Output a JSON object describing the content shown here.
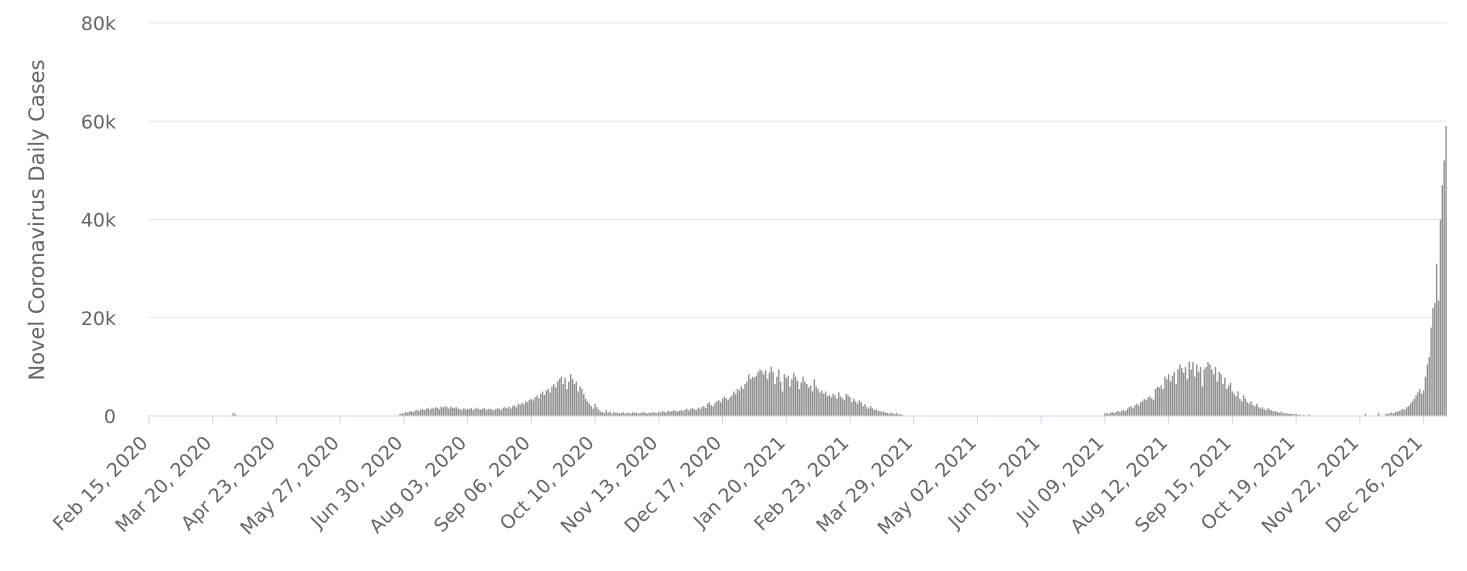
{
  "chart_data": {
    "type": "bar",
    "y_label": "Novel Coronavirus Daily Cases",
    "color": "#8f8f8f",
    "grid": true,
    "ylim": [
      0,
      80000
    ],
    "yticks": [
      0,
      {
        "value": 20000,
        "label": "20k"
      },
      {
        "value": 40000,
        "label": "40k"
      },
      {
        "value": 60000,
        "label": "60k"
      },
      {
        "value": 80000,
        "label": "80k"
      }
    ],
    "categories": [
      "Feb 15, 2020",
      null,
      null,
      null,
      null,
      null,
      null,
      null,
      null,
      null,
      null,
      null,
      null,
      null,
      null,
      null,
      null,
      null,
      null,
      null,
      null,
      null,
      null,
      null,
      null,
      null,
      null,
      null,
      null,
      null,
      null,
      null,
      null,
      null,
      "Mar 20, 2020",
      null,
      null,
      null,
      null,
      null,
      null,
      null,
      null,
      null,
      null,
      null,
      null,
      null,
      null,
      null,
      null,
      null,
      null,
      null,
      null,
      null,
      null,
      null,
      null,
      null,
      null,
      null,
      null,
      null,
      null,
      null,
      null,
      null,
      "Apr 23, 2020",
      null,
      null,
      null,
      null,
      null,
      null,
      null,
      null,
      null,
      null,
      null,
      null,
      null,
      null,
      null,
      null,
      null,
      null,
      null,
      null,
      null,
      null,
      null,
      null,
      null,
      null,
      null,
      null,
      null,
      null,
      null,
      null,
      null,
      "May 27, 2020",
      null,
      null,
      null,
      null,
      null,
      null,
      null,
      null,
      null,
      null,
      null,
      null,
      null,
      null,
      null,
      null,
      null,
      null,
      null,
      null,
      null,
      null,
      null,
      null,
      null,
      null,
      null,
      null,
      null,
      null,
      null,
      null,
      null,
      "Jun 30, 2020",
      null,
      null,
      null,
      null,
      null,
      null,
      null,
      null,
      null,
      null,
      null,
      null,
      null,
      null,
      null,
      null,
      null,
      null,
      null,
      null,
      null,
      null,
      null,
      null,
      null,
      null,
      null,
      null,
      null,
      null,
      null,
      null,
      null,
      "Aug 03, 2020",
      null,
      null,
      null,
      null,
      null,
      null,
      null,
      null,
      null,
      null,
      null,
      null,
      null,
      null,
      null,
      null,
      null,
      null,
      null,
      null,
      null,
      null,
      null,
      null,
      null,
      null,
      null,
      null,
      null,
      null,
      null,
      null,
      null,
      "Sep 06, 2020",
      null,
      null,
      null,
      null,
      null,
      null,
      null,
      null,
      null,
      null,
      null,
      null,
      null,
      null,
      null,
      null,
      null,
      null,
      null,
      null,
      null,
      null,
      null,
      null,
      null,
      null,
      null,
      null,
      null,
      null,
      null,
      null,
      null,
      "Oct 10, 2020",
      null,
      null,
      null,
      null,
      null,
      null,
      null,
      null,
      null,
      null,
      null,
      null,
      null,
      null,
      null,
      null,
      null,
      null,
      null,
      null,
      null,
      null,
      null,
      null,
      null,
      null,
      null,
      null,
      null,
      null,
      null,
      null,
      null,
      "Nov 13, 2020",
      null,
      null,
      null,
      null,
      null,
      null,
      null,
      null,
      null,
      null,
      null,
      null,
      null,
      null,
      null,
      null,
      null,
      null,
      null,
      null,
      null,
      null,
      null,
      null,
      null,
      null,
      null,
      null,
      null,
      null,
      null,
      null,
      null,
      "Dec 17, 2020",
      null,
      null,
      null,
      null,
      null,
      null,
      null,
      null,
      null,
      null,
      null,
      null,
      null,
      null,
      null,
      null,
      null,
      null,
      null,
      null,
      null,
      null,
      null,
      null,
      null,
      null,
      null,
      null,
      null,
      null,
      null,
      null,
      null,
      "Jan 20, 2021",
      null,
      null,
      null,
      null,
      null,
      null,
      null,
      null,
      null,
      null,
      null,
      null,
      null,
      null,
      null,
      null,
      null,
      null,
      null,
      null,
      null,
      null,
      null,
      null,
      null,
      null,
      null,
      null,
      null,
      null,
      null,
      null,
      null,
      "Feb 23, 2021",
      null,
      null,
      null,
      null,
      null,
      null,
      null,
      null,
      null,
      null,
      null,
      null,
      null,
      null,
      null,
      null,
      null,
      null,
      null,
      null,
      null,
      null,
      null,
      null,
      null,
      null,
      null,
      null,
      null,
      null,
      null,
      null,
      null,
      "Mar 29, 2021",
      null,
      null,
      null,
      null,
      null,
      null,
      null,
      null,
      null,
      null,
      null,
      null,
      null,
      null,
      null,
      null,
      null,
      null,
      null,
      null,
      null,
      null,
      null,
      null,
      null,
      null,
      null,
      null,
      null,
      null,
      null,
      null,
      null,
      "May 02, 2021",
      null,
      null,
      null,
      null,
      null,
      null,
      null,
      null,
      null,
      null,
      null,
      null,
      null,
      null,
      null,
      null,
      null,
      null,
      null,
      null,
      null,
      null,
      null,
      null,
      null,
      null,
      null,
      null,
      null,
      null,
      null,
      null,
      null,
      "Jun 05, 2021",
      null,
      null,
      null,
      null,
      null,
      null,
      null,
      null,
      null,
      null,
      null,
      null,
      null,
      null,
      null,
      null,
      null,
      null,
      null,
      null,
      null,
      null,
      null,
      null,
      null,
      null,
      null,
      null,
      null,
      null,
      null,
      null,
      null,
      "Jul 09, 2021",
      null,
      null,
      null,
      null,
      null,
      null,
      null,
      null,
      null,
      null,
      null,
      null,
      null,
      null,
      null,
      null,
      null,
      null,
      null,
      null,
      null,
      null,
      null,
      null,
      null,
      null,
      null,
      null,
      null,
      null,
      null,
      null,
      null,
      "Aug 12, 2021",
      null,
      null,
      null,
      null,
      null,
      null,
      null,
      null,
      null,
      null,
      null,
      null,
      null,
      null,
      null,
      null,
      null,
      null,
      null,
      null,
      null,
      null,
      null,
      null,
      null,
      null,
      null,
      null,
      null,
      null,
      null,
      null,
      null,
      "Sep 15, 2021",
      null,
      null,
      null,
      null,
      null,
      null,
      null,
      null,
      null,
      null,
      null,
      null,
      null,
      null,
      null,
      null,
      null,
      null,
      null,
      null,
      null,
      null,
      null,
      null,
      null,
      null,
      null,
      null,
      null,
      null,
      null,
      null,
      null,
      "Oct 19, 2021",
      null,
      null,
      null,
      null,
      null,
      null,
      null,
      null,
      null,
      null,
      null,
      null,
      null,
      null,
      null,
      null,
      null,
      null,
      null,
      null,
      null,
      null,
      null,
      null,
      null,
      null,
      null,
      null,
      null,
      null,
      null,
      null,
      null,
      "Nov 22, 2021",
      null,
      null,
      null,
      null,
      null,
      null,
      null,
      null,
      null,
      null,
      null,
      null,
      null,
      null,
      null,
      null,
      null,
      null,
      null,
      null,
      null,
      null,
      null,
      null,
      null,
      null,
      null,
      null,
      null,
      null,
      null,
      null,
      null,
      "Dec 26, 2021",
      null,
      null,
      null,
      null,
      null,
      null,
      null,
      null,
      null,
      null,
      null,
      null
    ],
    "values": [
      0,
      0,
      0,
      0,
      0,
      0,
      0,
      0,
      0,
      0,
      0,
      0,
      0,
      0,
      0,
      0,
      0,
      0,
      0,
      0,
      0,
      0,
      0,
      0,
      0,
      0,
      0,
      0,
      0,
      0,
      0,
      0,
      0,
      0,
      0,
      0,
      0,
      0,
      0,
      0,
      0,
      0,
      0,
      0,
      0,
      600,
      400,
      0,
      0,
      0,
      0,
      0,
      0,
      0,
      0,
      0,
      0,
      0,
      0,
      0,
      0,
      0,
      0,
      0,
      0,
      0,
      0,
      0,
      0,
      0,
      0,
      0,
      0,
      0,
      0,
      0,
      0,
      0,
      0,
      0,
      0,
      0,
      0,
      0,
      0,
      0,
      0,
      0,
      0,
      0,
      0,
      0,
      0,
      0,
      0,
      0,
      0,
      0,
      0,
      0,
      0,
      0,
      0,
      0,
      0,
      0,
      0,
      0,
      0,
      0,
      0,
      0,
      0,
      0,
      0,
      0,
      0,
      0,
      0,
      0,
      0,
      0,
      0,
      0,
      0,
      0,
      0,
      0,
      0,
      0,
      0,
      0,
      0,
      0,
      400,
      600,
      500,
      800,
      700,
      900,
      1000,
      800,
      1100,
      1200,
      1000,
      1300,
      1400,
      1200,
      1500,
      1600,
      1300,
      1700,
      1500,
      1800,
      1600,
      1400,
      1900,
      1700,
      2000,
      1800,
      1500,
      1900,
      1700,
      1600,
      1800,
      1500,
      1400,
      1200,
      1600,
      1300,
      1500,
      1400,
      1600,
      1200,
      1500,
      1700,
      1400,
      1300,
      1500,
      1600,
      1200,
      1400,
      1500,
      1300,
      1100,
      1400,
      1600,
      1500,
      1200,
      1700,
      1800,
      1600,
      1900,
      1500,
      2000,
      2200,
      1800,
      2500,
      2300,
      2700,
      2400,
      3000,
      2800,
      3300,
      3500,
      3200,
      3800,
      4200,
      3600,
      4500,
      5000,
      4300,
      5200,
      5500,
      4800,
      6000,
      6500,
      5800,
      7000,
      7500,
      8000,
      6500,
      7800,
      5500,
      7000,
      8500,
      7500,
      6500,
      7000,
      5000,
      6000,
      5500,
      4500,
      3500,
      3000,
      2500,
      2000,
      1500,
      2500,
      1800,
      1200,
      900,
      800,
      600,
      1200,
      700,
      900,
      500,
      800,
      600,
      700,
      500,
      600,
      800,
      500,
      700,
      600,
      500,
      800,
      600,
      700,
      500,
      600,
      700,
      800,
      600,
      500,
      700,
      600,
      800,
      700,
      600,
      900,
      700,
      1000,
      800,
      700,
      1100,
      900,
      1000,
      1200,
      1000,
      900,
      1100,
      1200,
      1000,
      1300,
      1500,
      1100,
      1400,
      1600,
      1300,
      1200,
      1700,
      1500,
      1800,
      2000,
      1600,
      2500,
      2800,
      2200,
      2000,
      2600,
      3000,
      3200,
      2800,
      3500,
      4000,
      3600,
      3300,
      3800,
      4200,
      5000,
      4500,
      5500,
      5200,
      6000,
      5500,
      6500,
      7000,
      8500,
      7500,
      8000,
      7800,
      8200,
      9000,
      9500,
      9200,
      8500,
      9300,
      7500,
      8800,
      10000,
      9000,
      6500,
      8000,
      9500,
      7000,
      5000,
      8500,
      7800,
      8200,
      6000,
      7500,
      8800,
      8000,
      7200,
      5500,
      6800,
      8000,
      7000,
      6500,
      5800,
      6200,
      5000,
      7500,
      6000,
      5500,
      4800,
      5200,
      4500,
      5000,
      4000,
      4300,
      3800,
      4500,
      4200,
      3500,
      4800,
      4000,
      3600,
      3200,
      4500,
      4200,
      3800,
      2800,
      3500,
      3000,
      2500,
      3200,
      2800,
      2000,
      2400,
      1800,
      1500,
      2000,
      1600,
      1200,
      1400,
      1000,
      1100,
      800,
      900,
      700,
      600,
      500,
      700,
      500,
      400,
      600,
      300,
      400,
      200,
      0,
      0,
      0,
      0,
      0,
      0,
      0,
      0,
      0,
      0,
      0,
      0,
      0,
      0,
      0,
      0,
      0,
      0,
      0,
      0,
      0,
      0,
      0,
      0,
      0,
      0,
      0,
      0,
      0,
      0,
      0,
      0,
      0,
      0,
      0,
      0,
      0,
      0,
      0,
      0,
      0,
      0,
      0,
      0,
      0,
      0,
      0,
      0,
      0,
      0,
      0,
      0,
      0,
      0,
      0,
      0,
      0,
      0,
      0,
      0,
      0,
      0,
      0,
      0,
      0,
      0,
      0,
      0,
      0,
      0,
      0,
      0,
      0,
      0,
      0,
      0,
      0,
      0,
      0,
      0,
      0,
      0,
      0,
      0,
      0,
      0,
      0,
      0,
      0,
      0,
      0,
      0,
      0,
      0,
      0,
      0,
      0,
      0,
      0,
      0,
      0,
      0,
      0,
      0,
      0,
      0,
      0,
      500,
      600,
      400,
      700,
      800,
      600,
      900,
      1000,
      800,
      1100,
      1200,
      1000,
      1500,
      1800,
      2000,
      1600,
      2200,
      2500,
      2100,
      2800,
      3000,
      3500,
      3200,
      3800,
      4000,
      3600,
      3300,
      5500,
      6000,
      5800,
      6200,
      5500,
      8000,
      7500,
      8500,
      7000,
      8200,
      9000,
      6500,
      9500,
      10500,
      9800,
      8800,
      10000,
      7500,
      11000,
      9500,
      11000,
      8000,
      10500,
      9000,
      10000,
      6000,
      9500,
      10000,
      11000,
      10500,
      9500,
      8500,
      10000,
      7000,
      9000,
      8500,
      6500,
      7800,
      5500,
      6200,
      6800,
      5000,
      4500,
      4000,
      5000,
      3500,
      3000,
      4200,
      3500,
      2800,
      2500,
      3000,
      2200,
      2000,
      2500,
      1800,
      1500,
      1800,
      1400,
      1200,
      1600,
      1300,
      1100,
      900,
      1000,
      800,
      700,
      900,
      600,
      500,
      600,
      400,
      500,
      400,
      300,
      500,
      200,
      300,
      100,
      200,
      0,
      0,
      300,
      0,
      0,
      0,
      0,
      0,
      0,
      0,
      0,
      0,
      0,
      0,
      0,
      0,
      0,
      0,
      0,
      0,
      0,
      0,
      0,
      0,
      0,
      0,
      0,
      0,
      0,
      0,
      0,
      0,
      500,
      0,
      0,
      0,
      0,
      0,
      0,
      600,
      0,
      0,
      0,
      500,
      400,
      600,
      700,
      500,
      800,
      900,
      1000,
      1200,
      1500,
      1300,
      1800,
      2000,
      2500,
      3000,
      3500,
      4200,
      4800,
      5500,
      4500,
      5200,
      8000,
      10500,
      12000,
      18000,
      22000,
      23000,
      31000,
      23500,
      40000,
      47000,
      52000,
      59000
    ]
  }
}
